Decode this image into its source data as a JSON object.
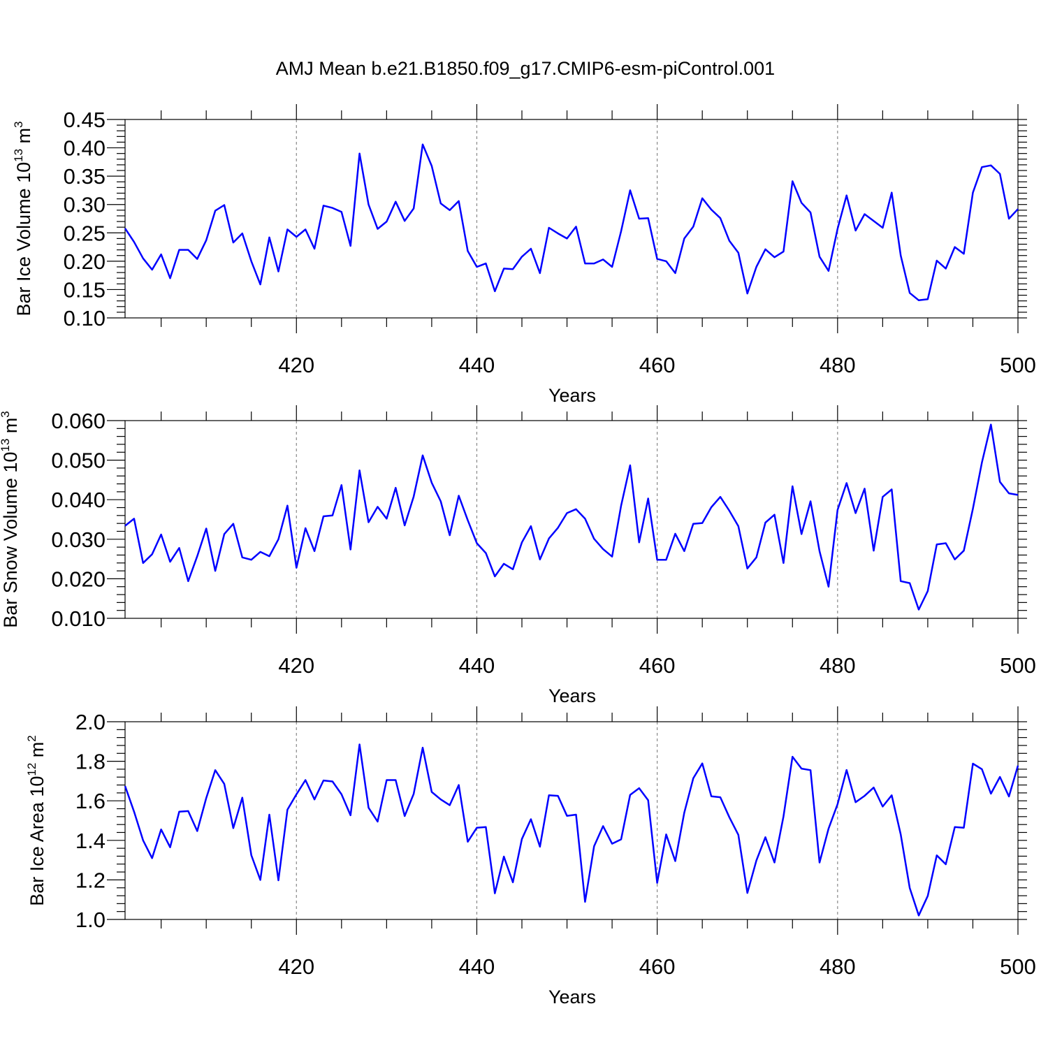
{
  "title": "AMJ Mean b.e21.B1850.f09_g17.CMIP6-esm-piControl.001",
  "chart_data": [
    {
      "type": "line",
      "name": "ice-volume",
      "ylabel": "Bar Ice Volume 10",
      "ylabel_exp": "13",
      "ylabel_unit": " m",
      "ylabel_unit_exp": "3",
      "xlabel": "Years",
      "xlim": [
        401,
        500
      ],
      "ylim": [
        0.1,
        0.45
      ],
      "yticks": [
        0.1,
        0.15,
        0.2,
        0.25,
        0.3,
        0.35,
        0.4,
        0.45
      ],
      "ytick_labels": [
        "0.10",
        "0.15",
        "0.20",
        "0.25",
        "0.30",
        "0.35",
        "0.40",
        "0.45"
      ],
      "xticks": [
        420,
        440,
        460,
        480,
        500
      ],
      "xtick_labels": [
        "420",
        "440",
        "460",
        "480",
        "500"
      ],
      "color": "#0000ff",
      "x_start": 401,
      "values": [
        0.258,
        0.234,
        0.205,
        0.185,
        0.212,
        0.17,
        0.22,
        0.22,
        0.204,
        0.237,
        0.289,
        0.299,
        0.233,
        0.249,
        0.2,
        0.159,
        0.242,
        0.182,
        0.256,
        0.243,
        0.256,
        0.222,
        0.298,
        0.294,
        0.287,
        0.227,
        0.39,
        0.3,
        0.257,
        0.27,
        0.305,
        0.271,
        0.293,
        0.406,
        0.368,
        0.302,
        0.29,
        0.306,
        0.218,
        0.19,
        0.196,
        0.147,
        0.187,
        0.186,
        0.208,
        0.222,
        0.179,
        0.259,
        0.249,
        0.24,
        0.261,
        0.196,
        0.196,
        0.203,
        0.19,
        0.253,
        0.325,
        0.275,
        0.276,
        0.204,
        0.2,
        0.179,
        0.24,
        0.261,
        0.311,
        0.291,
        0.276,
        0.236,
        0.215,
        0.143,
        0.19,
        0.221,
        0.207,
        0.217,
        0.341,
        0.303,
        0.286,
        0.208,
        0.183,
        0.257,
        0.316,
        0.254,
        0.283,
        0.271,
        0.259,
        0.321,
        0.21,
        0.144,
        0.131,
        0.133,
        0.201,
        0.187,
        0.225,
        0.213,
        0.321,
        0.366,
        0.369,
        0.354,
        0.275,
        0.292
      ]
    },
    {
      "type": "line",
      "name": "snow-volume",
      "ylabel": "Bar Snow Volume 10",
      "ylabel_exp": "13",
      "ylabel_unit": " m",
      "ylabel_unit_exp": "3",
      "xlabel": "Years",
      "xlim": [
        401,
        500
      ],
      "ylim": [
        0.01,
        0.06
      ],
      "yticks": [
        0.01,
        0.02,
        0.03,
        0.04,
        0.05,
        0.06
      ],
      "ytick_labels": [
        "0.010",
        "0.020",
        "0.030",
        "0.040",
        "0.050",
        "0.060"
      ],
      "xticks": [
        420,
        440,
        460,
        480,
        500
      ],
      "xtick_labels": [
        "420",
        "440",
        "460",
        "480",
        "500"
      ],
      "color": "#0000ff",
      "x_start": 401,
      "values": [
        0.0334,
        0.0352,
        0.024,
        0.0262,
        0.0312,
        0.0243,
        0.0278,
        0.0194,
        0.0257,
        0.0327,
        0.022,
        0.0313,
        0.0339,
        0.0254,
        0.0248,
        0.0268,
        0.0257,
        0.03,
        0.0385,
        0.0228,
        0.0328,
        0.027,
        0.0358,
        0.036,
        0.0437,
        0.0274,
        0.0474,
        0.0343,
        0.0382,
        0.0352,
        0.043,
        0.0335,
        0.0408,
        0.0512,
        0.0443,
        0.0396,
        0.031,
        0.041,
        0.0348,
        0.029,
        0.0265,
        0.0206,
        0.0238,
        0.0224,
        0.0292,
        0.0333,
        0.0249,
        0.0302,
        0.0329,
        0.0366,
        0.0376,
        0.0352,
        0.0301,
        0.0275,
        0.0256,
        0.0385,
        0.0487,
        0.0292,
        0.0403,
        0.0248,
        0.0248,
        0.0314,
        0.027,
        0.0339,
        0.0341,
        0.0381,
        0.0407,
        0.0372,
        0.0333,
        0.0226,
        0.0254,
        0.0342,
        0.0362,
        0.024,
        0.0434,
        0.0313,
        0.0396,
        0.027,
        0.018,
        0.0374,
        0.0442,
        0.0366,
        0.0428,
        0.0271,
        0.0407,
        0.0426,
        0.0194,
        0.0189,
        0.0122,
        0.0169,
        0.0287,
        0.029,
        0.0249,
        0.0271,
        0.0377,
        0.0494,
        0.059,
        0.0445,
        0.0416,
        0.0412
      ]
    },
    {
      "type": "line",
      "name": "ice-area",
      "ylabel": "Bar Ice Area 10",
      "ylabel_exp": "12",
      "ylabel_unit": " m",
      "ylabel_unit_exp": "2",
      "xlabel": "Years",
      "xlim": [
        401,
        500
      ],
      "ylim": [
        1.0,
        2.0
      ],
      "yticks": [
        1.0,
        1.2,
        1.4,
        1.6,
        1.8,
        2.0
      ],
      "ytick_labels": [
        "1.0",
        "1.2",
        "1.4",
        "1.6",
        "1.8",
        "2.0"
      ],
      "xticks": [
        420,
        440,
        460,
        480,
        500
      ],
      "xtick_labels": [
        "420",
        "440",
        "460",
        "480",
        "500"
      ],
      "color": "#0000ff",
      "x_start": 401,
      "values": [
        1.675,
        1.545,
        1.4,
        1.31,
        1.455,
        1.365,
        1.545,
        1.548,
        1.447,
        1.614,
        1.755,
        1.685,
        1.462,
        1.616,
        1.325,
        1.2,
        1.53,
        1.198,
        1.555,
        1.633,
        1.705,
        1.607,
        1.703,
        1.698,
        1.633,
        1.527,
        1.885,
        1.565,
        1.495,
        1.705,
        1.705,
        1.523,
        1.635,
        1.869,
        1.645,
        1.607,
        1.578,
        1.68,
        1.393,
        1.464,
        1.467,
        1.132,
        1.318,
        1.188,
        1.407,
        1.507,
        1.368,
        1.628,
        1.625,
        1.524,
        1.53,
        1.089,
        1.37,
        1.472,
        1.383,
        1.405,
        1.63,
        1.664,
        1.603,
        1.185,
        1.43,
        1.295,
        1.54,
        1.714,
        1.789,
        1.623,
        1.618,
        1.517,
        1.428,
        1.134,
        1.298,
        1.416,
        1.288,
        1.521,
        1.823,
        1.763,
        1.755,
        1.288,
        1.459,
        1.583,
        1.756,
        1.593,
        1.625,
        1.667,
        1.571,
        1.628,
        1.43,
        1.159,
        1.02,
        1.119,
        1.324,
        1.279,
        1.467,
        1.464,
        1.788,
        1.76,
        1.636,
        1.721,
        1.622,
        1.778
      ]
    }
  ]
}
